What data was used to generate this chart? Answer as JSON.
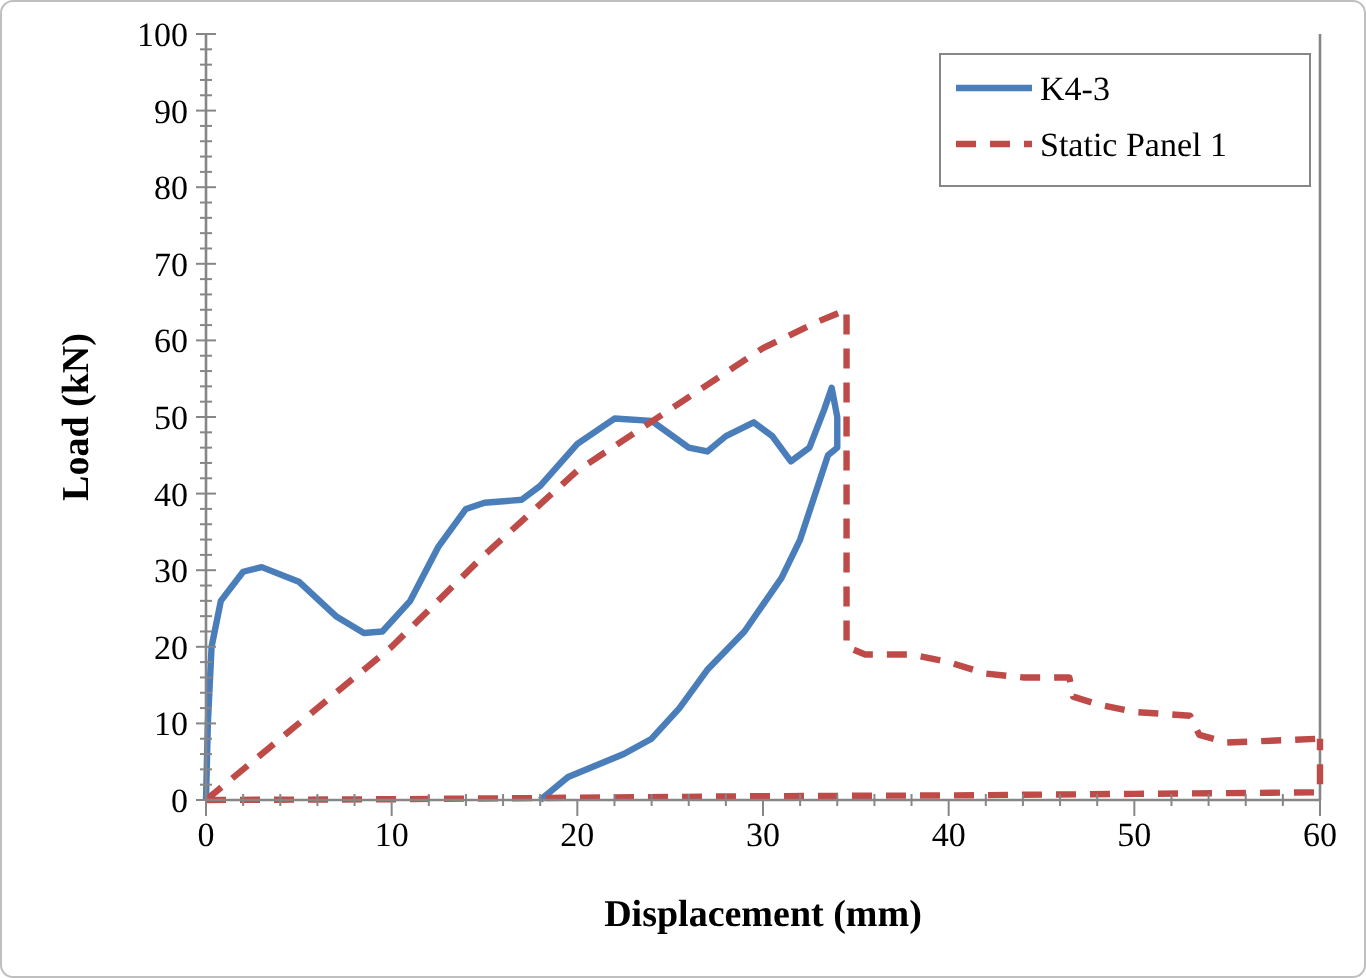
{
  "chart_data": {
    "type": "line",
    "xlabel": "Displacement (mm)",
    "ylabel": "Load (kN)",
    "xlim": [
      0,
      60
    ],
    "ylim": [
      0,
      100
    ],
    "xticks": [
      0,
      {
        "value": 2,
        "label": null
      },
      {
        "value": 4,
        "label": null
      },
      {
        "value": 6,
        "label": null
      },
      {
        "value": 8,
        "label": null
      },
      10,
      {
        "value": 12,
        "label": null
      },
      {
        "value": 14,
        "label": null
      },
      {
        "value": 16,
        "label": null
      },
      {
        "value": 18,
        "label": null
      },
      20,
      {
        "value": 22,
        "label": null
      },
      {
        "value": 24,
        "label": null
      },
      {
        "value": 26,
        "label": null
      },
      {
        "value": 28,
        "label": null
      },
      30,
      {
        "value": 32,
        "label": null
      },
      {
        "value": 34,
        "label": null
      },
      {
        "value": 36,
        "label": null
      },
      {
        "value": 38,
        "label": null
      },
      40,
      {
        "value": 42,
        "label": null
      },
      {
        "value": 44,
        "label": null
      },
      {
        "value": 46,
        "label": null
      },
      {
        "value": 48,
        "label": null
      },
      50,
      {
        "value": 52,
        "label": null
      },
      {
        "value": 54,
        "label": null
      },
      {
        "value": 56,
        "label": null
      },
      {
        "value": 58,
        "label": null
      },
      60
    ],
    "yticks": [
      0,
      {
        "value": 2,
        "label": null
      },
      {
        "value": 4,
        "label": null
      },
      {
        "value": 6,
        "label": null
      },
      {
        "value": 8,
        "label": null
      },
      10,
      {
        "value": 12,
        "label": null
      },
      {
        "value": 14,
        "label": null
      },
      {
        "value": 16,
        "label": null
      },
      {
        "value": 18,
        "label": null
      },
      20,
      {
        "value": 22,
        "label": null
      },
      {
        "value": 24,
        "label": null
      },
      {
        "value": 26,
        "label": null
      },
      {
        "value": 28,
        "label": null
      },
      30,
      {
        "value": 32,
        "label": null
      },
      {
        "value": 34,
        "label": null
      },
      {
        "value": 36,
        "label": null
      },
      {
        "value": 38,
        "label": null
      },
      40,
      {
        "value": 42,
        "label": null
      },
      {
        "value": 44,
        "label": null
      },
      {
        "value": 46,
        "label": null
      },
      {
        "value": 48,
        "label": null
      },
      50,
      {
        "value": 52,
        "label": null
      },
      {
        "value": 54,
        "label": null
      },
      {
        "value": 56,
        "label": null
      },
      {
        "value": 58,
        "label": null
      },
      60,
      {
        "value": 62,
        "label": null
      },
      {
        "value": 64,
        "label": null
      },
      {
        "value": 66,
        "label": null
      },
      {
        "value": 68,
        "label": null
      },
      70,
      {
        "value": 72,
        "label": null
      },
      {
        "value": 74,
        "label": null
      },
      {
        "value": 76,
        "label": null
      },
      {
        "value": 78,
        "label": null
      },
      80,
      {
        "value": 82,
        "label": null
      },
      {
        "value": 84,
        "label": null
      },
      {
        "value": 86,
        "label": null
      },
      {
        "value": 88,
        "label": null
      },
      90,
      {
        "value": 92,
        "label": null
      },
      {
        "value": 94,
        "label": null
      },
      {
        "value": 96,
        "label": null
      },
      {
        "value": 98,
        "label": null
      },
      100
    ],
    "grid": false,
    "legend": "top right",
    "marker": "none",
    "series": [
      {
        "name": "K4-3",
        "color": "#4a7ebb",
        "line_style": "solid",
        "x": [
          0,
          0.1,
          0.3,
          0.8,
          2,
          3,
          5,
          7,
          8.5,
          9.5,
          11,
          12.5,
          14,
          15,
          17,
          18,
          20,
          22,
          24,
          26,
          27,
          28,
          29.5,
          30.5,
          31.5,
          32.5,
          33.3,
          33.7,
          34,
          34,
          33.5,
          32,
          31,
          29,
          27,
          25.5,
          24,
          22.5,
          21,
          19.5,
          18
        ],
        "values": [
          0,
          10,
          20,
          26,
          29.8,
          30.4,
          28.5,
          24,
          21.8,
          22,
          26,
          33,
          38,
          38.8,
          39.2,
          41,
          46.5,
          49.8,
          49.5,
          46,
          45.5,
          47.5,
          49.3,
          47.5,
          44.2,
          46,
          51,
          53.8,
          50,
          46,
          45,
          34,
          29,
          22,
          17,
          12,
          8,
          6,
          4.5,
          3,
          0
        ]
      },
      {
        "name": "Static Panel 1",
        "color": "#be4b48",
        "line_style": "dashed",
        "x": [
          0,
          5,
          10,
          15,
          20,
          25,
          30,
          33,
          34.5,
          34.5,
          35.5,
          38,
          40,
          42,
          44,
          46.5,
          46.7,
          48,
          50,
          53,
          53.5,
          55,
          60
        ],
        "values": [
          0,
          10,
          20,
          32,
          43,
          51,
          59,
          62.5,
          64,
          20,
          19,
          19,
          18,
          16.5,
          16,
          16,
          13.5,
          12.5,
          11.5,
          11,
          8.5,
          7.5,
          8
        ]
      },
      {
        "color": "#be4b48",
        "line_style": "dashed",
        "x": [
          0,
          10,
          20,
          30,
          40,
          50,
          60,
          60
        ],
        "values": [
          0,
          0.1,
          0.3,
          0.5,
          0.6,
          0.8,
          1,
          8
        ]
      }
    ]
  }
}
